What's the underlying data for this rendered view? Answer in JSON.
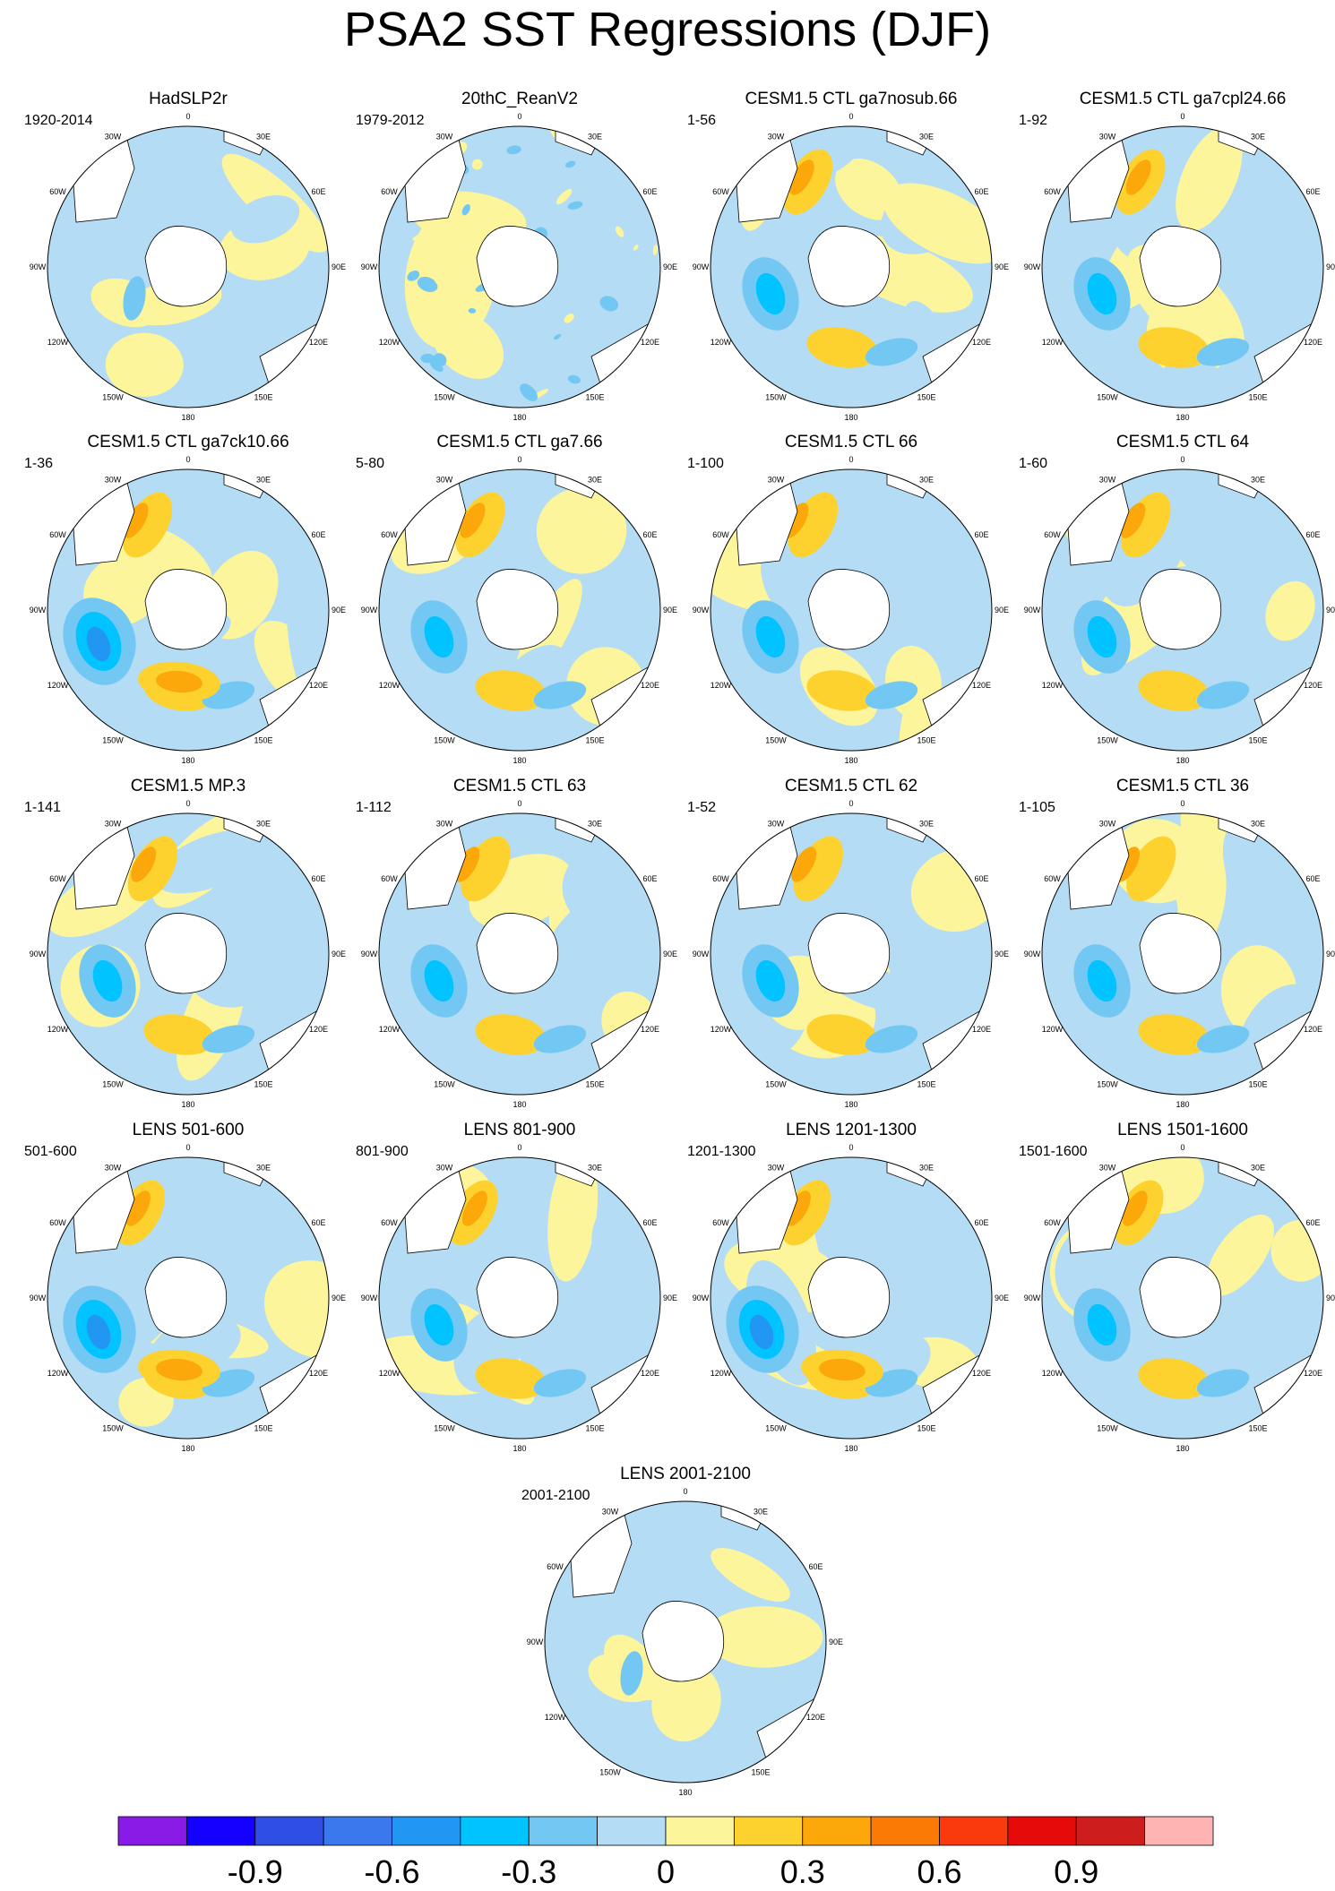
{
  "title": "PSA2 SST Regressions (DJF)",
  "lon_labels": [
    "0",
    "30E",
    "60E",
    "90E",
    "120E",
    "150E",
    "180",
    "150W",
    "120W",
    "90W",
    "60W",
    "30W"
  ],
  "panels": [
    {
      "title": "HadSLP2r",
      "period": "1920-2014",
      "pattern": "weak"
    },
    {
      "title": "20thC_ReanV2",
      "period": "1979-2012",
      "pattern": "noisy"
    },
    {
      "title": "CESM1.5 CTL ga7nosub.66",
      "period": "1-56",
      "pattern": "mixed"
    },
    {
      "title": "CESM1.5 CTL ga7cpl24.66",
      "period": "1-92",
      "pattern": "mixed"
    },
    {
      "title": "CESM1.5 CTL ga7ck10.66",
      "period": "1-36",
      "pattern": "strong"
    },
    {
      "title": "CESM1.5 CTL ga7.66",
      "period": "5-80",
      "pattern": "mixed"
    },
    {
      "title": "CESM1.5 CTL 66",
      "period": "1-100",
      "pattern": "mixed"
    },
    {
      "title": "CESM1.5 CTL 64",
      "period": "1-60",
      "pattern": "mixed"
    },
    {
      "title": "CESM1.5 MP.3",
      "period": "1-141",
      "pattern": "mixed"
    },
    {
      "title": "CESM1.5 CTL 63",
      "period": "1-112",
      "pattern": "mixed"
    },
    {
      "title": "CESM1.5 CTL 62",
      "period": "1-52",
      "pattern": "mixed"
    },
    {
      "title": "CESM1.5 CTL 36",
      "period": "1-105",
      "pattern": "mixed"
    },
    {
      "title": "LENS 501-600",
      "period": "501-600",
      "pattern": "strong"
    },
    {
      "title": "LENS 801-900",
      "period": "801-900",
      "pattern": "mixed"
    },
    {
      "title": "LENS 1201-1300",
      "period": "1201-1300",
      "pattern": "strong"
    },
    {
      "title": "LENS 1501-1600",
      "period": "1501-1600",
      "pattern": "mixed"
    },
    {
      "title": "LENS 2001-2100",
      "period": "2001-2100",
      "pattern": "weak"
    }
  ],
  "colorbar": {
    "colors": [
      "#8a1be6",
      "#1400ff",
      "#2f4ee6",
      "#3a78ee",
      "#2196f3",
      "#00c3ff",
      "#73c7f3",
      "#b4dcf4",
      "#fdf59b",
      "#fdd22e",
      "#fca70a",
      "#fb7a06",
      "#fa3a0c",
      "#e60a0a",
      "#cd1d1d",
      "#ffb4b4"
    ],
    "tick_labels": [
      "-0.9",
      "-0.6",
      "-0.3",
      "0",
      "0.3",
      "0.6",
      "0.9"
    ]
  }
}
